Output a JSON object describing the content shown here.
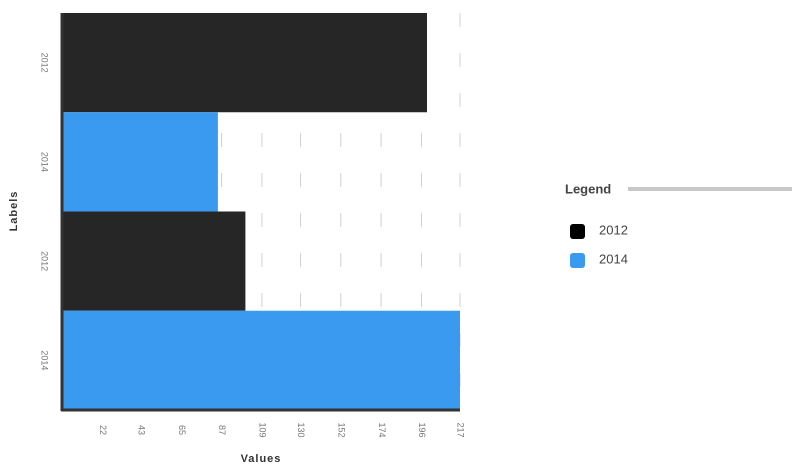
{
  "chart_data": {
    "type": "hbar",
    "categories": [
      "2012",
      "2014",
      "2012",
      "2014"
    ],
    "values": [
      199,
      85,
      100,
      217
    ],
    "colors": [
      "#262626",
      "#3a9af0",
      "#262626",
      "#3a9af0"
    ],
    "xlabel": "Values",
    "ylabel": "Labels",
    "xlim": [
      0,
      217
    ],
    "xticks": [
      22,
      43,
      65,
      87,
      109,
      130,
      152,
      174,
      196,
      217
    ],
    "grid": true,
    "legend": {
      "title": "Legend",
      "items": [
        {
          "name": "2012",
          "color": "#000000"
        },
        {
          "name": "2014",
          "color": "#3a9af0"
        }
      ]
    }
  }
}
